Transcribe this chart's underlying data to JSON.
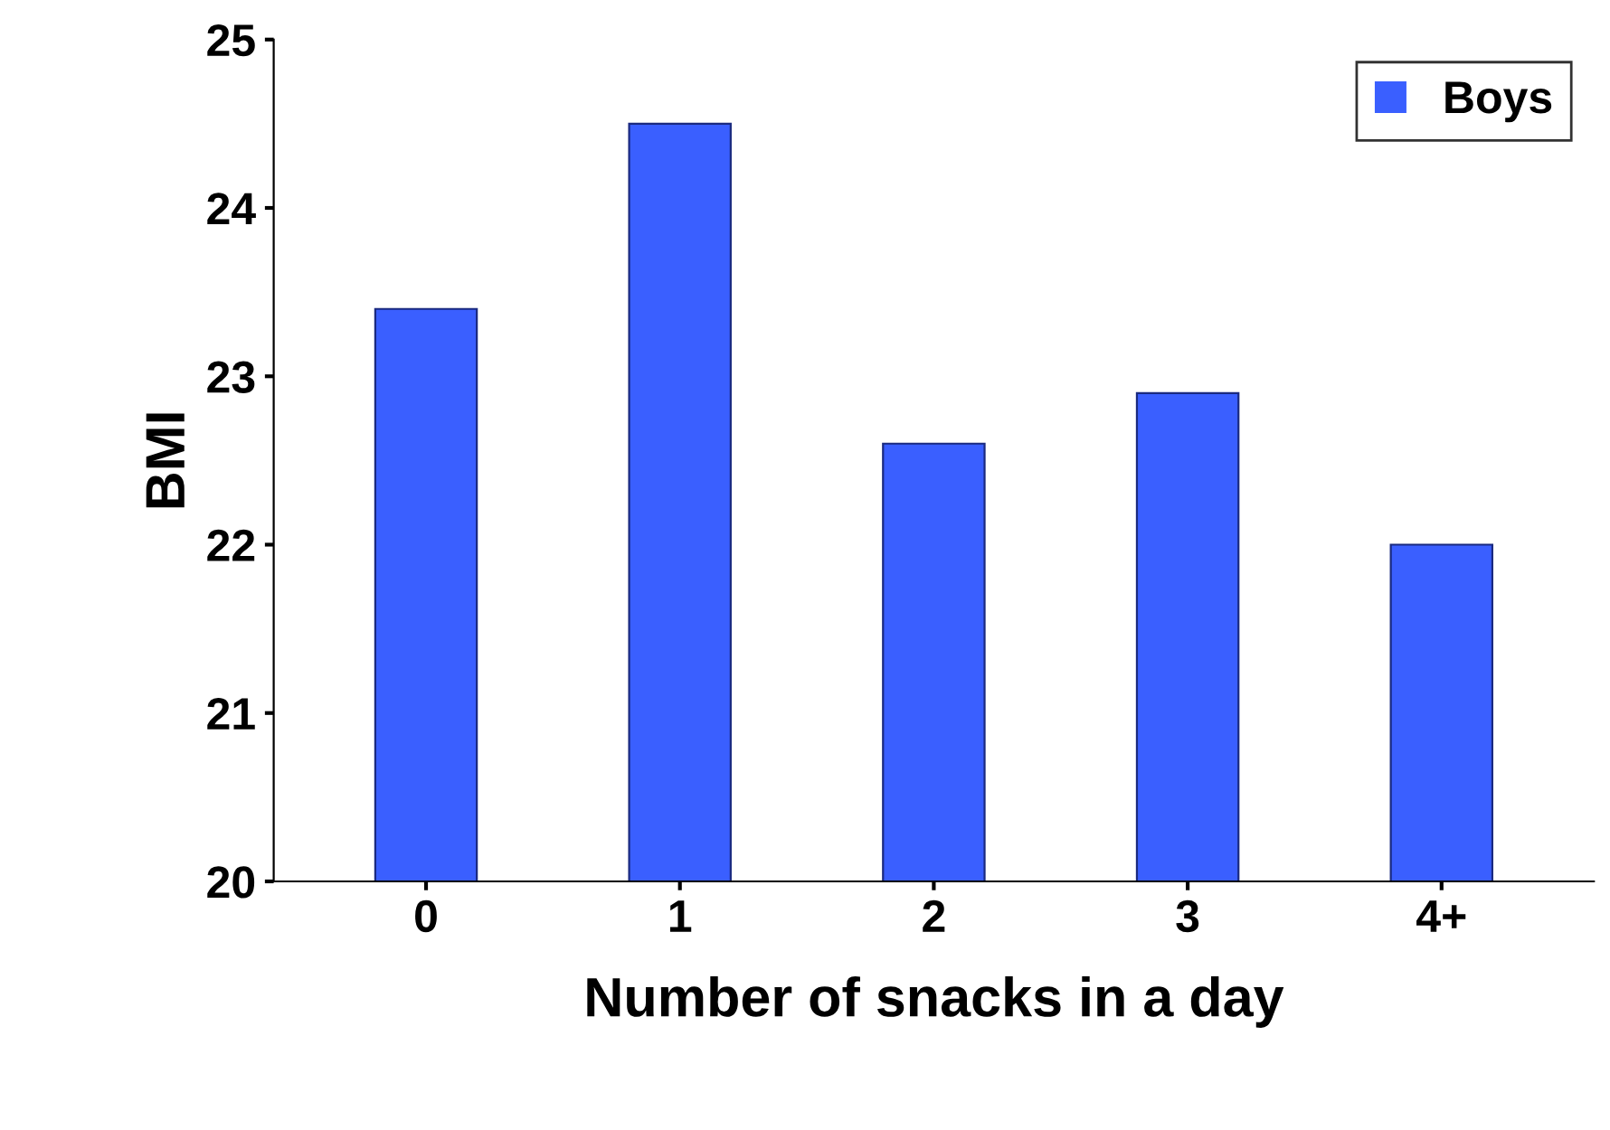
{
  "chart_data": {
    "type": "bar",
    "xlabel": "Number of snacks in a day",
    "ylabel": "BMI",
    "categories": [
      "0",
      "1",
      "2",
      "3",
      "4+"
    ],
    "series": [
      {
        "name": "Boys",
        "color": "#3a5fff",
        "values": [
          23.4,
          24.5,
          22.6,
          22.9,
          22.0
        ]
      }
    ],
    "ylim": [
      20,
      25
    ],
    "yticks": [
      20,
      21,
      22,
      23,
      24,
      25
    ],
    "grid": false,
    "legend": "top right"
  }
}
